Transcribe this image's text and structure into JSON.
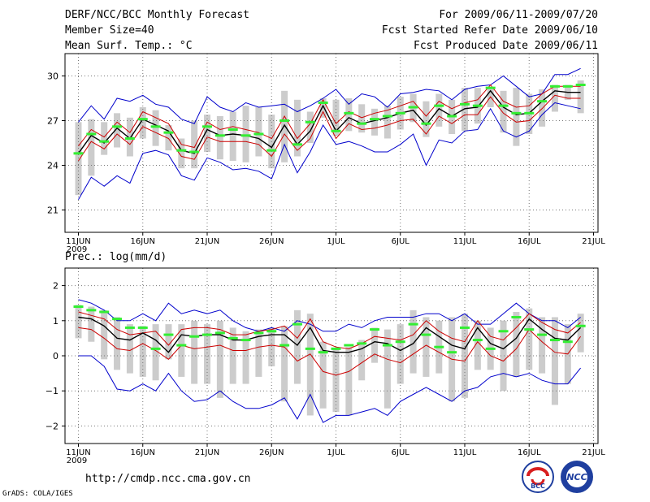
{
  "header": {
    "title": "DERF/NCC/BCC Monthly Forecast",
    "member_size": "Member Size=40",
    "variable": "Mean Surf. Temp.: °C",
    "period": "For 2009/06/11-2009/07/20",
    "started": "Fcst Started Refer Date 2009/06/10",
    "produced": "Fcst Produced Date 2009/06/11"
  },
  "footer": {
    "url": "http://cmdp.ncc.cma.gov.cn",
    "credit": "GrADS: COLA/IGES",
    "logo_bcc": "BCC",
    "logo_ncc": "NCC"
  },
  "colors": {
    "envelope": "#0000cc",
    "spread": "#cc0000",
    "mean": "#000000",
    "marker": "#33ee33",
    "box": "#cccccc",
    "grid": "#777777"
  },
  "chart_data": [
    {
      "type": "line",
      "name": "temperature",
      "title": "Mean Surf. Temp.: °C",
      "x_unit": "day",
      "x_start": "2009-06-11",
      "ylim": [
        19.5,
        31.5
      ],
      "yticks": [
        21,
        24,
        27,
        30
      ],
      "xticks": [
        {
          "day": 1,
          "label": "11JUN",
          "sub": "2009"
        },
        {
          "day": 6,
          "label": "16JUN"
        },
        {
          "day": 11,
          "label": "21JUN"
        },
        {
          "day": 16,
          "label": "26JUN"
        },
        {
          "day": 21,
          "label": "1JUL"
        },
        {
          "day": 26,
          "label": "6JUL"
        },
        {
          "day": 31,
          "label": "11JUL"
        },
        {
          "day": 36,
          "label": "16JUL"
        },
        {
          "day": 41,
          "label": "21JUL"
        }
      ],
      "grid": true,
      "series": [
        {
          "name": "max",
          "color": "#0000cc",
          "values": [
            26.9,
            28.0,
            27.1,
            28.5,
            28.3,
            28.7,
            28.1,
            27.9,
            27.1,
            26.8,
            28.6,
            27.9,
            27.6,
            28.2,
            27.9,
            28.0,
            28.1,
            27.6,
            28.0,
            28.5,
            29.1,
            28.1,
            28.8,
            28.6,
            27.9,
            28.8,
            28.9,
            29.1,
            29.0,
            28.4,
            29.1,
            29.3,
            29.4,
            30.0,
            29.3,
            28.6,
            28.8,
            30.1,
            30.1,
            30.5
          ]
        },
        {
          "name": "plus_sd",
          "color": "#cc0000",
          "values": [
            25.3,
            26.4,
            25.9,
            26.9,
            26.2,
            27.6,
            27.2,
            26.8,
            25.4,
            25.2,
            26.9,
            26.4,
            26.6,
            26.4,
            26.2,
            25.8,
            27.3,
            25.8,
            26.8,
            28.4,
            26.8,
            27.6,
            27.2,
            27.5,
            27.7,
            28.0,
            28.3,
            27.3,
            28.3,
            27.8,
            28.2,
            28.4,
            29.4,
            28.3,
            27.9,
            28.0,
            28.8,
            29.3,
            29.3,
            29.3
          ]
        },
        {
          "name": "mean",
          "color": "#000000",
          "values": [
            24.8,
            26.0,
            25.5,
            26.5,
            25.8,
            27.1,
            26.7,
            26.3,
            25.0,
            24.8,
            26.4,
            26.0,
            26.1,
            26.0,
            25.8,
            25.2,
            26.7,
            25.4,
            26.3,
            28.0,
            26.3,
            27.2,
            26.8,
            27.0,
            27.2,
            27.5,
            27.7,
            26.7,
            27.8,
            27.3,
            27.8,
            27.9,
            29.0,
            27.9,
            27.4,
            27.5,
            28.3,
            29.0,
            28.9,
            28.9
          ]
        },
        {
          "name": "minus_sd",
          "color": "#cc0000",
          "values": [
            24.3,
            25.6,
            25.1,
            26.1,
            25.4,
            26.6,
            26.2,
            25.8,
            24.6,
            24.4,
            25.9,
            25.6,
            25.6,
            25.6,
            25.4,
            24.6,
            26.1,
            25.0,
            25.8,
            27.6,
            25.8,
            26.8,
            26.4,
            26.5,
            26.7,
            27.0,
            27.1,
            26.1,
            27.3,
            26.8,
            27.4,
            27.4,
            28.6,
            27.5,
            26.9,
            27.0,
            27.8,
            28.7,
            28.5,
            28.5
          ]
        },
        {
          "name": "min",
          "color": "#0000cc",
          "values": [
            21.7,
            23.2,
            22.6,
            23.3,
            22.8,
            24.8,
            25.0,
            24.7,
            23.3,
            23.0,
            24.5,
            24.2,
            23.7,
            23.8,
            23.6,
            23.1,
            25.4,
            23.5,
            24.9,
            26.7,
            25.4,
            25.6,
            25.3,
            24.9,
            24.9,
            25.4,
            26.1,
            24.0,
            25.7,
            25.5,
            26.3,
            26.4,
            27.8,
            26.3,
            25.9,
            26.3,
            27.4,
            28.2,
            28.0,
            27.8
          ]
        }
      ],
      "markers": {
        "name": "control",
        "color": "#33ee33",
        "values": [
          24.8,
          26.1,
          25.6,
          26.6,
          25.8,
          27.1,
          26.6,
          26.2,
          25.0,
          24.9,
          26.6,
          26.0,
          26.4,
          26.0,
          26.1,
          25.0,
          27.0,
          25.4,
          26.9,
          28.2,
          26.3,
          27.5,
          26.8,
          27.1,
          27.3,
          27.5,
          27.9,
          26.8,
          28.0,
          27.3,
          28.1,
          28.0,
          29.2,
          28.0,
          27.5,
          27.5,
          28.3,
          29.3,
          29.3,
          29.4
        ]
      },
      "boxes": {
        "name": "ensemble_range",
        "color": "#cccccc",
        "low": [
          22.0,
          23.3,
          24.7,
          25.2,
          24.6,
          25.8,
          25.3,
          25.0,
          23.8,
          23.8,
          24.9,
          24.4,
          24.3,
          24.2,
          24.6,
          23.8,
          24.2,
          24.6,
          25.5,
          27.2,
          26.0,
          26.3,
          26.2,
          26.0,
          25.8,
          26.4,
          26.9,
          25.9,
          26.6,
          26.1,
          26.3,
          26.8,
          27.9,
          26.2,
          25.3,
          26.1,
          26.6,
          27.6,
          28.4,
          27.5
        ],
        "high": [
          26.9,
          27.1,
          26.9,
          27.5,
          27.2,
          27.9,
          27.7,
          26.7,
          25.8,
          27.0,
          27.4,
          27.3,
          27.6,
          28.0,
          27.9,
          27.4,
          29.0,
          28.4,
          27.6,
          28.5,
          28.4,
          28.5,
          28.1,
          27.8,
          28.0,
          28.6,
          28.8,
          28.3,
          28.8,
          28.4,
          29.2,
          29.2,
          29.2,
          29.0,
          29.2,
          28.8,
          29.1,
          29.4,
          29.4,
          29.7
        ]
      }
    },
    {
      "type": "line",
      "name": "precipitation",
      "title": "Prec.: log(mm/d)",
      "x_unit": "day",
      "x_start": "2009-06-11",
      "ylim": [
        -2.5,
        2.5
      ],
      "yticks": [
        -2,
        -1,
        0,
        1,
        2
      ],
      "xticks": [
        {
          "day": 1,
          "label": "11JUN",
          "sub": "2009"
        },
        {
          "day": 6,
          "label": "16JUN"
        },
        {
          "day": 11,
          "label": "21JUN"
        },
        {
          "day": 16,
          "label": "26JUN"
        },
        {
          "day": 21,
          "label": "1JUL"
        },
        {
          "day": 26,
          "label": "6JUL"
        },
        {
          "day": 31,
          "label": "11JUL"
        },
        {
          "day": 36,
          "label": "16JUL"
        },
        {
          "day": 41,
          "label": "21JUL"
        }
      ],
      "grid": true,
      "series": [
        {
          "name": "max",
          "color": "#0000cc",
          "values": [
            1.6,
            1.5,
            1.3,
            1.0,
            1.0,
            1.2,
            1.0,
            1.5,
            1.2,
            1.3,
            1.2,
            1.3,
            1.0,
            0.8,
            0.7,
            0.8,
            0.7,
            1.0,
            0.9,
            0.7,
            0.7,
            0.9,
            0.8,
            1.0,
            1.1,
            1.1,
            1.1,
            1.2,
            1.2,
            1.0,
            1.2,
            0.9,
            0.9,
            1.2,
            1.5,
            1.2,
            1.0,
            1.0,
            0.8,
            1.1
          ]
        },
        {
          "name": "plus_sd",
          "color": "#cc0000",
          "values": [
            1.25,
            1.15,
            1.05,
            0.75,
            0.6,
            0.65,
            0.7,
            0.3,
            0.75,
            0.8,
            0.8,
            0.75,
            0.6,
            0.6,
            0.7,
            0.75,
            0.85,
            0.5,
            1.05,
            0.4,
            0.25,
            0.2,
            0.35,
            0.55,
            0.5,
            0.45,
            0.6,
            1.0,
            0.7,
            0.5,
            0.4,
            1.0,
            0.55,
            0.45,
            0.8,
            1.2,
            0.95,
            0.75,
            0.65,
            0.95
          ]
        },
        {
          "name": "mean",
          "color": "#000000",
          "values": [
            1.1,
            1.05,
            0.85,
            0.5,
            0.45,
            0.65,
            0.45,
            0.1,
            0.6,
            0.55,
            0.6,
            0.6,
            0.45,
            0.45,
            0.55,
            0.6,
            0.6,
            0.3,
            0.8,
            0.15,
            0.1,
            0.1,
            0.2,
            0.4,
            0.35,
            0.15,
            0.35,
            0.8,
            0.55,
            0.3,
            0.2,
            0.8,
            0.35,
            0.2,
            0.5,
            1.05,
            0.75,
            0.5,
            0.45,
            0.8
          ]
        },
        {
          "name": "minus_sd",
          "color": "#cc0000",
          "values": [
            0.8,
            0.75,
            0.5,
            0.2,
            0.15,
            0.35,
            0.15,
            -0.1,
            0.3,
            0.2,
            0.25,
            0.3,
            0.15,
            0.15,
            0.25,
            0.3,
            0.25,
            -0.15,
            0.05,
            -0.45,
            -0.55,
            -0.45,
            -0.2,
            0.05,
            -0.1,
            -0.2,
            0.05,
            0.3,
            0.1,
            -0.1,
            -0.15,
            0.4,
            0.0,
            -0.15,
            0.2,
            0.75,
            0.4,
            0.1,
            0.05,
            0.55
          ]
        },
        {
          "name": "min",
          "color": "#0000cc",
          "values": [
            0.0,
            0.0,
            -0.3,
            -0.95,
            -1.0,
            -0.8,
            -1.0,
            -0.5,
            -1.0,
            -1.3,
            -1.25,
            -1.0,
            -1.3,
            -1.5,
            -1.5,
            -1.4,
            -1.2,
            -1.8,
            -1.1,
            -1.9,
            -1.7,
            -1.7,
            -1.6,
            -1.5,
            -1.7,
            -1.3,
            -1.1,
            -0.9,
            -1.1,
            -1.3,
            -1.0,
            -0.9,
            -0.6,
            -0.5,
            -0.6,
            -0.5,
            -0.7,
            -0.8,
            -0.8,
            -0.35
          ]
        }
      ],
      "markers": {
        "name": "control",
        "color": "#33ee33",
        "values": [
          1.4,
          1.3,
          1.25,
          1.05,
          0.8,
          0.8,
          0.2,
          0.6,
          0.3,
          0.55,
          0.6,
          0.65,
          0.5,
          0.45,
          0.65,
          0.7,
          0.3,
          0.9,
          0.2,
          0.1,
          0.2,
          0.3,
          0.35,
          0.75,
          0.3,
          0.4,
          0.9,
          0.6,
          0.25,
          0.1,
          0.8,
          0.45,
          0.2,
          0.7,
          1.1,
          0.75,
          0.6,
          0.45,
          0.4,
          0.85
        ]
      },
      "boxes": {
        "name": "ensemble_range",
        "color": "#cccccc",
        "low": [
          0.5,
          0.4,
          -0.1,
          -0.4,
          -0.5,
          -0.6,
          -0.7,
          -0.1,
          -0.6,
          -0.8,
          -0.8,
          -1.2,
          -0.8,
          -0.8,
          -0.6,
          -0.3,
          -1.3,
          -0.8,
          -1.7,
          -1.5,
          -1.6,
          -1.7,
          -0.7,
          -0.2,
          -1.5,
          -0.8,
          -0.5,
          -0.6,
          -0.5,
          -1.3,
          -1.2,
          -0.4,
          -0.4,
          -1.0,
          -0.6,
          -0.4,
          -0.5,
          -1.4,
          -0.8,
          0.1
        ]
      },
      "high": [
        1.45,
        1.4,
        1.3,
        1.1,
        0.9,
        0.85,
        0.9,
        0.9,
        0.9,
        1.0,
        0.9,
        1.0,
        0.8,
        0.7,
        0.75,
        0.8,
        0.85,
        1.3,
        1.2,
        0.4,
        0.2,
        0.25,
        0.45,
        0.8,
        0.75,
        0.9,
        1.3,
        1.1,
        1.0,
        1.1,
        1.2,
        1.0,
        0.8,
        1.0,
        1.25,
        1.35,
        1.1,
        1.1,
        0.9,
        1.2
      ]
    }
  ]
}
